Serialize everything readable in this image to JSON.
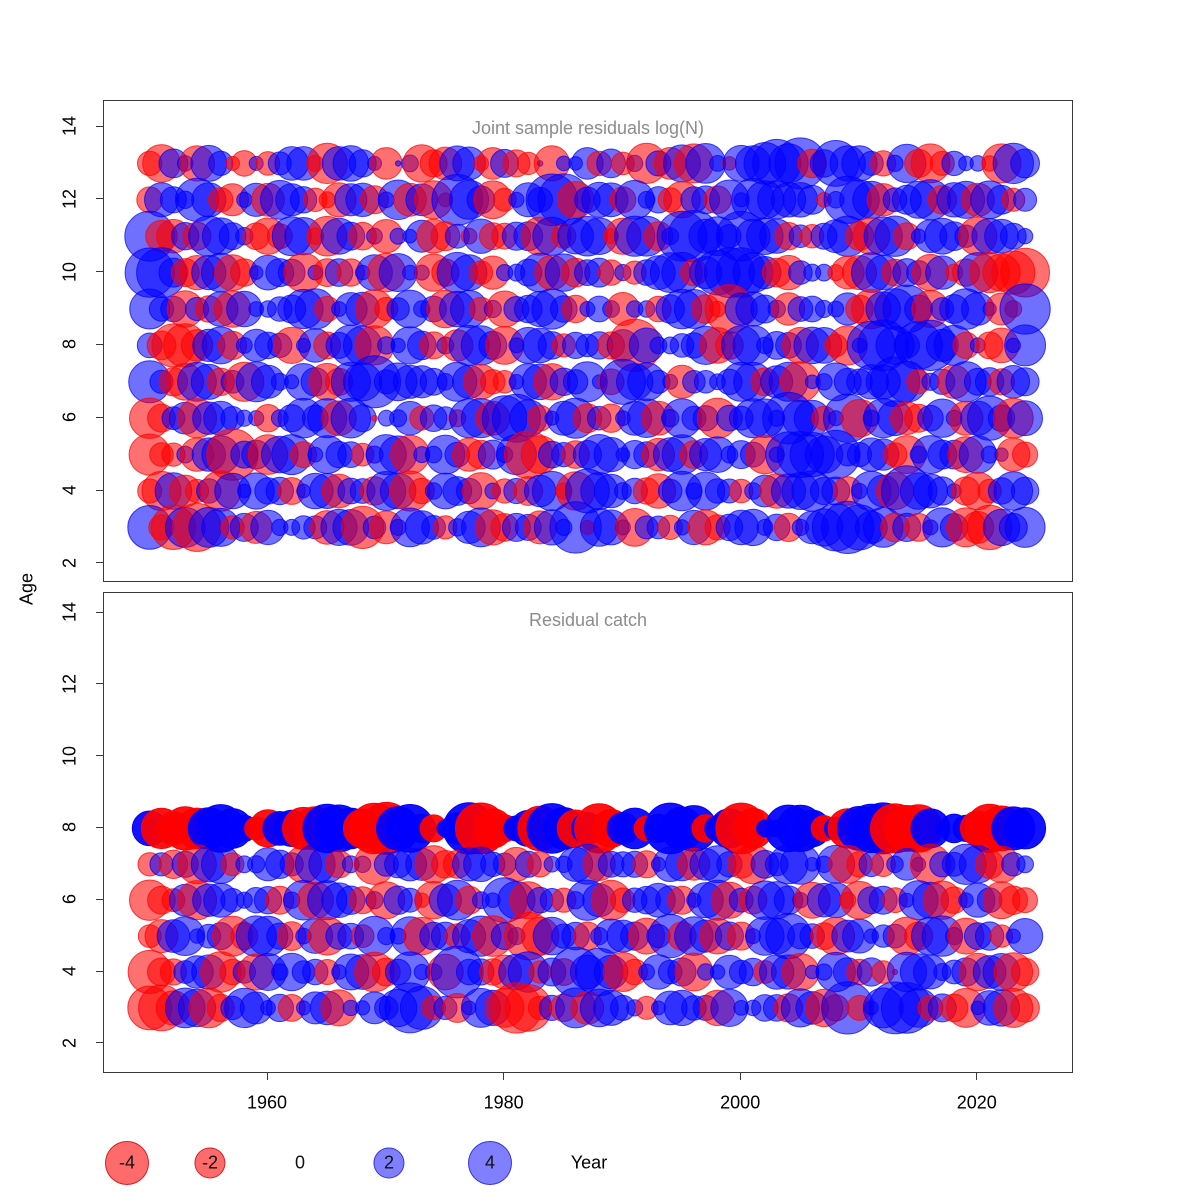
{
  "figure": {
    "ylabel": "Age",
    "xlabel": "Year",
    "y_ticks": [
      2,
      4,
      6,
      8,
      10,
      12,
      14
    ],
    "x_ticks": [
      1960,
      1980,
      2000,
      2020
    ],
    "colors": {
      "negative_fill": "#FF0000",
      "positive_fill": "#0000FF",
      "fill_alpha": 0.56,
      "opaque_row_alpha": 0.93,
      "title_gray": "#8C8C8C",
      "axis_line": "#3a3a3a",
      "text": "#000000"
    },
    "legend": {
      "values": [
        -4,
        -2,
        0,
        2,
        4
      ],
      "labels": [
        "-4",
        "-2",
        "0",
        "2",
        "4"
      ]
    }
  },
  "chart_data": [
    {
      "type": "bubble",
      "panel": "top",
      "title": "Joint sample residuals log(N)",
      "xlabel": "Year",
      "ylabel": "Age",
      "ylim": [
        2,
        14
      ],
      "x_start_year": 1950,
      "x_end_year": 2024,
      "ages": [
        13,
        12,
        11,
        10,
        9,
        8,
        7,
        6,
        5,
        4,
        3
      ],
      "encoding": "One character per year from x_start_year. Digit d (0-9): sign = d<5 ? negative(red) : positive(blue); magnitude = (|d-4.5|^2)/4.5 on the legend scale (~0.06, 0.5, 1.4, 2.7, 4.5). Values are visual approximations read from bubble areas.",
      "residuals_by_age": {
        "13": "217618732627883188761561218831722516682726171818638899892798872682127663187",
        "12": "287698216818872318826818139871268799178828672177286988887369881778828818727",
        "11": "911728876212883187261668127382277182888318826998879888272788218826887718876",
        "10": "997218812687716272681866128821667818277262788828999882176631188277183281100",
        "9": "877172818667788268812786718826177887267616627882308876177668218997177886139",
        "8": "720018826877168278816687261887168872777280866778128867718821699879988262169",
        "7": "972188271886687128897888768812268817786298876177678828816687788992671877287",
        "6": "127818876626787818746682773881998268827268816877177886988269168812786189718",
        "5": "022618807718826877268816687127680177278867718828867716999897788216877186612",
        "4": "218127186877268817728812687716272883198867217868772681889772688198876212787",
        "3": "920808827186677188071688726881277186938861772681278867268899988272687110878"
      }
    },
    {
      "type": "bubble",
      "panel": "bottom",
      "title": "Residual catch",
      "xlabel": "Year",
      "ylabel": "Age",
      "ylim": [
        2,
        14
      ],
      "x_start_year": 1950,
      "x_end_year": 2024,
      "ages": [
        8,
        7,
        6,
        5,
        4,
        3
      ],
      "opaque_ages": [
        8
      ],
      "encoding": "One character per year from x_start_year. Digit d (0-9): sign = d<5 ? negative(red) : positive(blue); magnitude = (|d-4.5|^2)/4.5 on the legend scale (~0.06, 0.5, 1.4, 2.7, 4.5). Age-8 row drawn saturated (opaque) as in source. Values are visual approximations.",
      "residuals_by_age": {
        "8": "811009987218800998100997268901278099180188279992780166998271999000867710099",
        "7": "272718826687718826617788122887717266881777268818872177886681272686177882176",
        "6": "122818876772681887261773188266981772688127787268817288761883177268812687122",
        "5": "218867712887268177286681772881760187726887179288172688977218867712886177268",
        "4": "022788127186877268812786619772188272989812687716687728816687272488867718812",
        "3": "001881278867268816687899272688100272818876268877186677288129268998272168812"
      }
    }
  ]
}
